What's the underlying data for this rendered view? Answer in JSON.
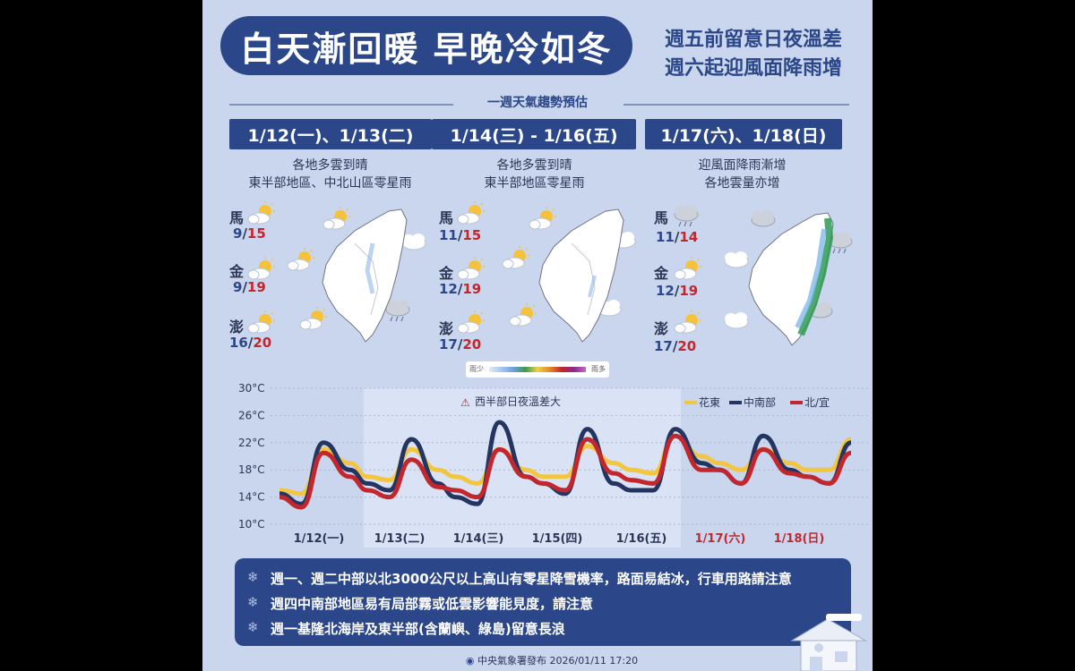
{
  "title": "白天漸回暖  早晚冷如冬",
  "subtitle_lines": [
    "週五前留意日夜溫差",
    "週六起迎風面降雨增"
  ],
  "week_label": "一週天氣趨勢預估",
  "periods": [
    {
      "date": "1/12(一)、1/13(二)",
      "desc": [
        "各地多雲到晴",
        "東半部地區、中北山區零星雨"
      ],
      "cities": [
        {
          "name": "馬",
          "low": "9",
          "high": "15"
        },
        {
          "name": "金",
          "low": "9",
          "high": "19"
        },
        {
          "name": "澎",
          "low": "16",
          "high": "20"
        }
      ]
    },
    {
      "date": "1/14(三) - 1/16(五)",
      "desc": [
        "各地多雲到晴",
        "東半部地區零星雨"
      ],
      "cities": [
        {
          "name": "馬",
          "low": "11",
          "high": "15"
        },
        {
          "name": "金",
          "low": "12",
          "high": "19"
        },
        {
          "name": "澎",
          "low": "17",
          "high": "20"
        }
      ]
    },
    {
      "date": "1/17(六)、1/18(日)",
      "desc": [
        "迎風面降雨漸增",
        "各地雲量亦增"
      ],
      "cities": [
        {
          "name": "馬",
          "low": "11",
          "high": "14"
        },
        {
          "name": "金",
          "low": "12",
          "high": "19"
        },
        {
          "name": "澎",
          "low": "17",
          "high": "20"
        }
      ]
    }
  ],
  "scale_labels": {
    "low": "雨少",
    "high": "雨多"
  },
  "chart_data": {
    "type": "line",
    "y_ticks": [
      "30°C",
      "26°C",
      "22°C",
      "18°C",
      "14°C",
      "10°C"
    ],
    "ylim": [
      10,
      30
    ],
    "x_labels": [
      "1/12(一)",
      "1/13(二)",
      "1/14(三)",
      "1/15(四)",
      "1/16(五)",
      "1/17(六)",
      "1/18(日)"
    ],
    "weekend_labels": [
      "1/17(六)",
      "1/18(日)"
    ],
    "annotation": "西半部日夜溫差大",
    "legend": [
      "花東",
      "中南部",
      "北/宜"
    ],
    "x": [
      0,
      0.25,
      0.5,
      0.8,
      1,
      1.25,
      1.5,
      1.8,
      2,
      2.25,
      2.5,
      2.8,
      3,
      3.25,
      3.5,
      3.8,
      4,
      4.25,
      4.5,
      4.8,
      5,
      5.25,
      5.5,
      5.8,
      6,
      6.25,
      6.5
    ],
    "series": [
      {
        "name": "花東",
        "color": "#f2c640",
        "values": [
          15,
          14.5,
          21,
          19,
          17,
          16.5,
          21,
          18,
          17,
          16,
          21,
          18,
          17,
          17,
          21.5,
          19,
          18,
          17.5,
          23,
          20,
          19,
          18,
          21,
          19,
          18,
          18,
          22.5
        ]
      },
      {
        "name": "中南部",
        "color": "#233560",
        "values": [
          14.5,
          13,
          22,
          18,
          16,
          15,
          22.5,
          16,
          14,
          13,
          25,
          17,
          16,
          14.5,
          24,
          16,
          15,
          15,
          24,
          19,
          18,
          16,
          23,
          18,
          17,
          16,
          22
        ]
      },
      {
        "name": "北/宜",
        "color": "#c1272d",
        "values": [
          14,
          12.5,
          20.5,
          17,
          15,
          14,
          19.5,
          15.5,
          15,
          14,
          21,
          17,
          16,
          15,
          22.5,
          17.5,
          16.5,
          16,
          23,
          18,
          18,
          16,
          21,
          17.5,
          17,
          16,
          20.5
        ]
      }
    ]
  },
  "notes": [
    "週一、週二中部以北3000公尺以上高山有零星降雪機率，路面易結冰，行車用路請注意",
    "週四中南部地區易有局部霧或低雲影響能見度，請注意",
    "週一基隆北海岸及東半部(含蘭嶼、綠島)留意長浪"
  ],
  "note_icon": "snowflake-icon",
  "footer": "中央氣象署發布 2026/01/11 17:20",
  "colors": {
    "navy": "#2b4789",
    "background": "#c9d6ee",
    "red": "#c1272d",
    "yellow": "#f2c640"
  }
}
